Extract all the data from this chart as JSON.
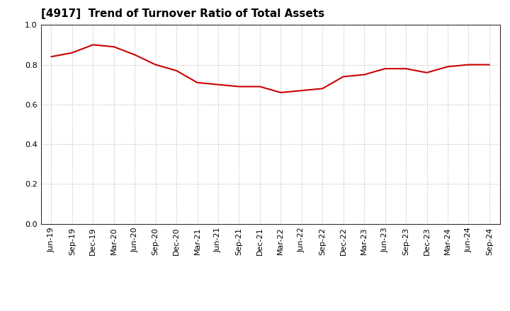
{
  "title": "[4917]  Trend of Turnover Ratio of Total Assets",
  "x_labels": [
    "Jun-19",
    "Sep-19",
    "Dec-19",
    "Mar-20",
    "Jun-20",
    "Sep-20",
    "Dec-20",
    "Mar-21",
    "Jun-21",
    "Sep-21",
    "Dec-21",
    "Mar-22",
    "Jun-22",
    "Sep-22",
    "Dec-22",
    "Mar-23",
    "Jun-23",
    "Sep-23",
    "Dec-23",
    "Mar-24",
    "Jun-24",
    "Sep-24"
  ],
  "y_values": [
    0.84,
    0.86,
    0.9,
    0.89,
    0.85,
    0.8,
    0.77,
    0.71,
    0.7,
    0.69,
    0.69,
    0.66,
    0.67,
    0.68,
    0.74,
    0.75,
    0.78,
    0.78,
    0.76,
    0.79,
    0.8,
    0.8
  ],
  "line_color": "#cc0000",
  "line_width": 1.5,
  "ylim": [
    0.0,
    1.0
  ],
  "yticks": [
    0.0,
    0.2,
    0.4,
    0.6,
    0.8,
    1.0
  ],
  "background_color": "#ffffff",
  "plot_bg_color": "#ffffff",
  "grid_color": "#bbbbbb",
  "spine_color": "#333333",
  "title_fontsize": 11,
  "tick_fontsize": 8
}
